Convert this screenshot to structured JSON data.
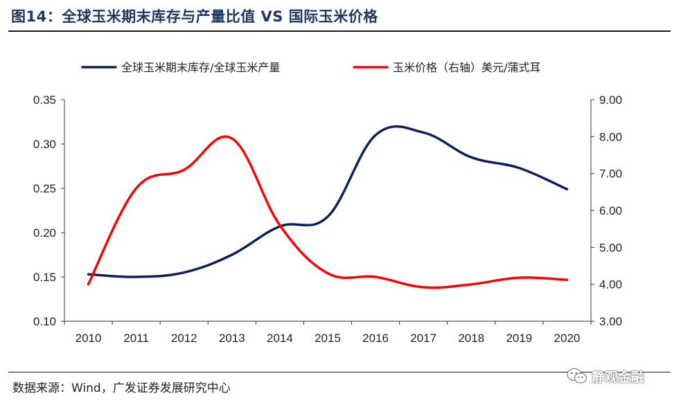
{
  "header": {
    "figure_title": "图14：全球玉米期末库存与产量比值 VS 国际玉米价格"
  },
  "footer": {
    "source": "数据来源：Wind，广发证券发展研究中心",
    "watermark": "静观金融",
    "watermark_icon": "wechat-icon"
  },
  "chart_data": {
    "type": "line",
    "x": [
      "2010",
      "2011",
      "2012",
      "2013",
      "2014",
      "2015",
      "2016",
      "2017",
      "2018",
      "2019",
      "2020"
    ],
    "series": [
      {
        "name": "全球玉米期末库存/全球玉米产量",
        "axis": "left",
        "color": "#0d1f5c",
        "values": [
          0.153,
          0.15,
          0.155,
          0.175,
          0.207,
          0.218,
          0.31,
          0.313,
          0.285,
          0.273,
          0.249
        ]
      },
      {
        "name": "玉米价格（右轴）美元/蒲式耳",
        "axis": "right",
        "color": "#ff0000",
        "values": [
          4.0,
          6.6,
          7.1,
          7.95,
          5.6,
          4.3,
          4.2,
          3.92,
          4.0,
          4.18,
          4.12
        ]
      }
    ],
    "y_left": {
      "min": 0.1,
      "max": 0.35,
      "ticks": [
        "0.10",
        "0.15",
        "0.20",
        "0.25",
        "0.30",
        "0.35"
      ]
    },
    "y_right": {
      "min": 3.0,
      "max": 9.0,
      "ticks": [
        "3.00",
        "4.00",
        "5.00",
        "6.00",
        "7.00",
        "8.00",
        "9.00"
      ]
    },
    "grid": false,
    "legend_position": "top"
  }
}
